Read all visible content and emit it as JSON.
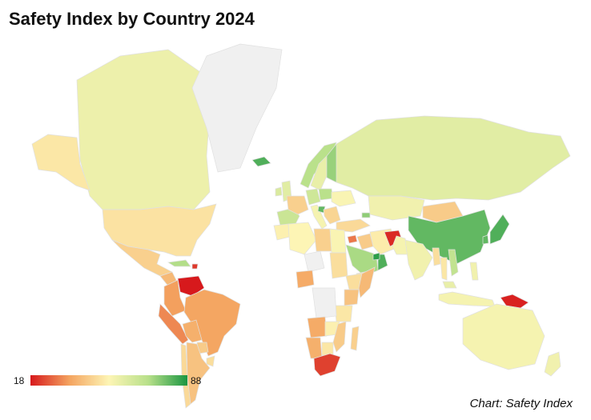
{
  "title": "Safety Index by Country 2024",
  "credit": "Chart: Safety Index",
  "legend": {
    "min_label": "18",
    "max_label": "88",
    "min": 18,
    "max": 88,
    "colors": [
      "#d7191c",
      "#f4a460",
      "#fdf5b5",
      "#b8e08a",
      "#1a9641"
    ]
  },
  "no_data_color": "#f0f0f0",
  "chart_data": {
    "type": "choropleth",
    "metric_range": [
      18,
      88
    ],
    "regions": [
      {
        "name": "Canada",
        "value": 57
      },
      {
        "name": "Alaska",
        "value": 50
      },
      {
        "name": "United States",
        "value": 49
      },
      {
        "name": "Greenland",
        "value": null
      },
      {
        "name": "Mexico",
        "value": 45
      },
      {
        "name": "Central America",
        "value": 40
      },
      {
        "name": "Cuba",
        "value": 71
      },
      {
        "name": "Haiti",
        "value": 22
      },
      {
        "name": "Venezuela",
        "value": 18
      },
      {
        "name": "Colombia",
        "value": 35
      },
      {
        "name": "Peru",
        "value": 32
      },
      {
        "name": "Brazil",
        "value": 36
      },
      {
        "name": "Bolivia",
        "value": 38
      },
      {
        "name": "Paraguay",
        "value": 44
      },
      {
        "name": "Uruguay",
        "value": 48
      },
      {
        "name": "Chile",
        "value": 47
      },
      {
        "name": "Argentina",
        "value": 42
      },
      {
        "name": "Iceland",
        "value": 82
      },
      {
        "name": "United Kingdom",
        "value": 60
      },
      {
        "name": "Ireland",
        "value": 62
      },
      {
        "name": "Norway",
        "value": 70
      },
      {
        "name": "Sweden",
        "value": 58
      },
      {
        "name": "Finland",
        "value": 74
      },
      {
        "name": "Spain",
        "value": 66
      },
      {
        "name": "France",
        "value": 45
      },
      {
        "name": "Germany",
        "value": 65
      },
      {
        "name": "Italy",
        "value": 55
      },
      {
        "name": "Poland",
        "value": 70
      },
      {
        "name": "Croatia",
        "value": 80
      },
      {
        "name": "Balkans",
        "value": 46
      },
      {
        "name": "Ukraine",
        "value": 54
      },
      {
        "name": "Russia",
        "value": 60
      },
      {
        "name": "Turkey",
        "value": 47
      },
      {
        "name": "Georgia",
        "value": 75
      },
      {
        "name": "Kazakhstan",
        "value": 56
      },
      {
        "name": "Mongolia",
        "value": 44
      },
      {
        "name": "China",
        "value": 80
      },
      {
        "name": "Japan",
        "value": 82
      },
      {
        "name": "South Korea",
        "value": 80
      },
      {
        "name": "Syria",
        "value": 30
      },
      {
        "name": "Iraq",
        "value": 44
      },
      {
        "name": "Iran",
        "value": 51
      },
      {
        "name": "Saudi Arabia",
        "value": 72
      },
      {
        "name": "Oman",
        "value": 82
      },
      {
        "name": "UAE",
        "value": 86
      },
      {
        "name": "Yemen",
        "value": 50
      },
      {
        "name": "Afghanistan",
        "value": 20
      },
      {
        "name": "Pakistan",
        "value": 55
      },
      {
        "name": "India",
        "value": 56
      },
      {
        "name": "Myanmar",
        "value": 48
      },
      {
        "name": "Thailand",
        "value": 50
      },
      {
        "name": "Vietnam",
        "value": 68
      },
      {
        "name": "Malaysia",
        "value": 58
      },
      {
        "name": "Indonesia",
        "value": 55
      },
      {
        "name": "Philippines",
        "value": 56
      },
      {
        "name": "Papua New Guinea",
        "value": 19
      },
      {
        "name": "Australia",
        "value": 55
      },
      {
        "name": "New Zealand",
        "value": 56
      },
      {
        "name": "Morocco",
        "value": 52
      },
      {
        "name": "Algeria",
        "value": 53
      },
      {
        "name": "Libya",
        "value": 45
      },
      {
        "name": "Egypt",
        "value": 54
      },
      {
        "name": "Niger",
        "value": null
      },
      {
        "name": "Nigeria",
        "value": 37
      },
      {
        "name": "Sudan",
        "value": 48
      },
      {
        "name": "Ethiopia",
        "value": 48
      },
      {
        "name": "Somalia",
        "value": 40
      },
      {
        "name": "Kenya",
        "value": 42
      },
      {
        "name": "Tanzania",
        "value": 50
      },
      {
        "name": "DR Congo",
        "value": null
      },
      {
        "name": "Angola",
        "value": 37
      },
      {
        "name": "Namibia",
        "value": 38
      },
      {
        "name": "Botswana",
        "value": 50
      },
      {
        "name": "Zambia",
        "value": 52
      },
      {
        "name": "Mozambique",
        "value": 44
      },
      {
        "name": "Madagascar",
        "value": 45
      },
      {
        "name": "South Africa",
        "value": 23
      }
    ]
  }
}
